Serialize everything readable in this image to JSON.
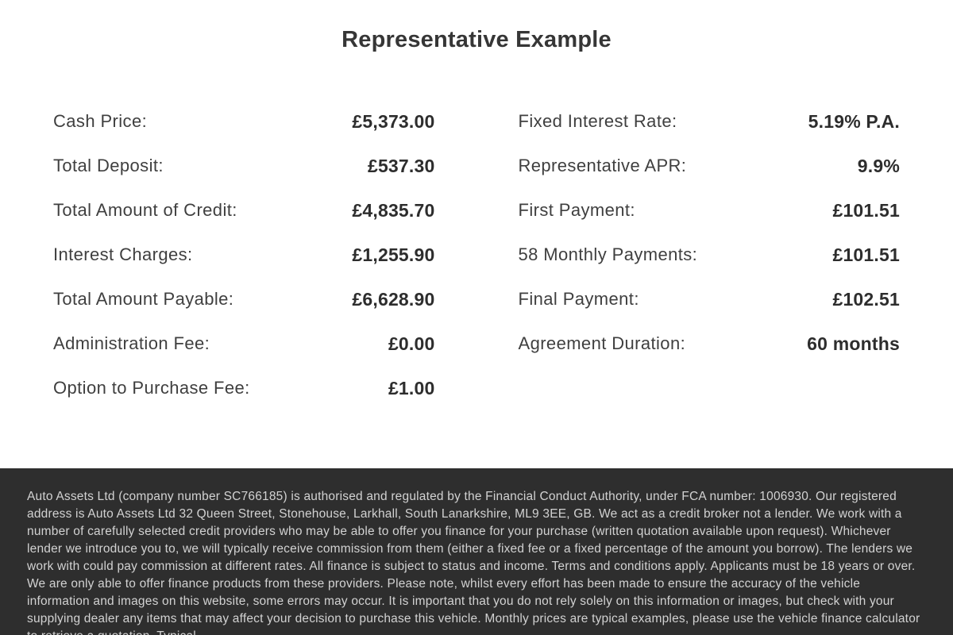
{
  "page": {
    "title": "Representative Example"
  },
  "finance_example": {
    "left_column": [
      {
        "label": "Cash Price:",
        "value": "£5,373.00"
      },
      {
        "label": "Total Deposit:",
        "value": "£537.30"
      },
      {
        "label": "Total Amount of Credit:",
        "value": "£4,835.70"
      },
      {
        "label": "Interest Charges:",
        "value": "£1,255.90"
      },
      {
        "label": "Total Amount Payable:",
        "value": "£6,628.90"
      },
      {
        "label": "Administration Fee:",
        "value": "£0.00"
      },
      {
        "label": "Option to Purchase Fee:",
        "value": "£1.00"
      }
    ],
    "right_column": [
      {
        "label": "Fixed Interest Rate:",
        "value": "5.19% P.A."
      },
      {
        "label": "Representative APR:",
        "value": "9.9%"
      },
      {
        "label": "First Payment:",
        "value": "£101.51"
      },
      {
        "label": "58 Monthly Payments:",
        "value": "£101.51"
      },
      {
        "label": "Final Payment:",
        "value": "£102.51"
      },
      {
        "label": "Agreement Duration:",
        "value": "60 months"
      }
    ]
  },
  "footer": {
    "disclaimer": "Auto Assets Ltd (company number SC766185) is authorised and regulated by the Financial Conduct Authority, under FCA number: 1006930. Our registered address is Auto Assets Ltd 32 Queen Street, Stonehouse, Larkhall, South Lanarkshire, ML9 3EE, GB. We act as a credit broker not a lender. We work with a number of carefully selected credit providers who may be able to offer you finance for your purchase (written quotation available upon request). Whichever lender we introduce you to, we will typically receive commission from them (either a fixed fee or a fixed percentage of the amount you borrow). The lenders we work with could pay commission at different rates. All finance is subject to status and income. Terms and conditions apply. Applicants must be 18 years or over. We are only able to offer finance products from these providers. Please note, whilst every effort has been made to ensure the accuracy of the vehicle information and images on this website, some errors may occur. It is important that you do not rely solely on this information or images, but check with your supplying dealer any items that may affect your decision to purchase this vehicle. Monthly prices are typical examples, please use the vehicle finance calculator to retrieve a quotation. Typical"
  },
  "colors": {
    "title": "#363636",
    "label": "#3f3f3f",
    "value": "#2d2d2d",
    "footer_bg": "#2e2e2e",
    "footer_text": "#d2d2d2",
    "page_bg": "#ffffff"
  }
}
